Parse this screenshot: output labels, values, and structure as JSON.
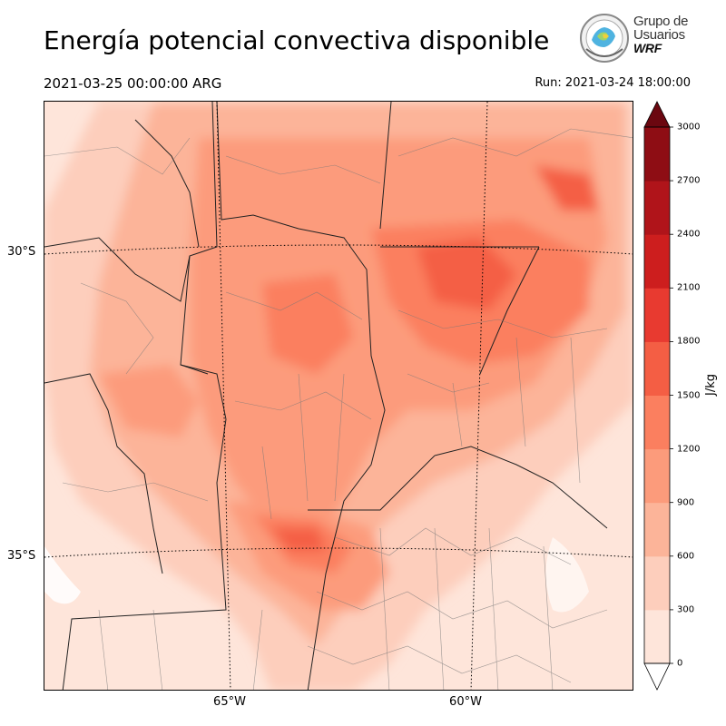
{
  "header": {
    "title": "Energía potencial convectiva disponible",
    "valid_time": "2021-03-25 00:00:00 ARG",
    "run_time": "Run: 2021-03-24 18:00:00"
  },
  "logo": {
    "line1": "Grupo de",
    "line2": "Usuarios",
    "line3": "WRF"
  },
  "map": {
    "lat_labels": [
      "30°S",
      "35°S"
    ],
    "lon_labels": [
      "65°W",
      "60°W"
    ]
  },
  "colorbar": {
    "label": "J/kg",
    "ticks": [
      "0",
      "300",
      "600",
      "900",
      "1200",
      "1500",
      "1800",
      "2100",
      "2400",
      "2700",
      "3000"
    ],
    "colors": [
      "#fee5da",
      "#fdcebc",
      "#fcb499",
      "#fc9b7b",
      "#fb7f5f",
      "#f45e44",
      "#e83a30",
      "#cd1e1e",
      "#b0141a",
      "#8e0d14",
      "#6b0710"
    ]
  }
}
